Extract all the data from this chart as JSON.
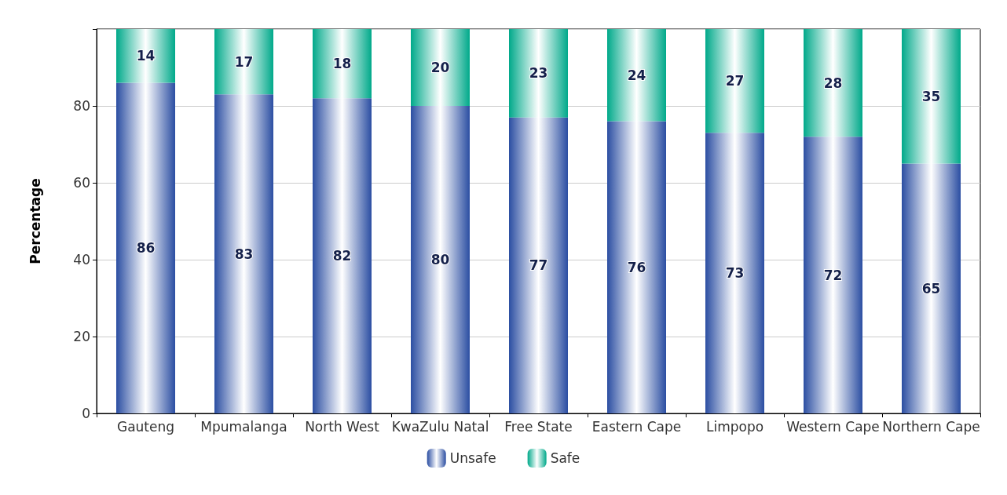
{
  "chart_data": {
    "type": "bar",
    "stacked": true,
    "ylabel": "Percentage",
    "categories": [
      "Gauteng",
      "Mpumalanga",
      "North West",
      "KwaZulu Natal",
      "Free State",
      "Eastern Cape",
      "Limpopo",
      "Western Cape",
      "Northern Cape"
    ],
    "series": [
      {
        "name": "Unsafe",
        "color": "#2b4ea2",
        "values": [
          86,
          83,
          82,
          80,
          77,
          76,
          73,
          72,
          65
        ]
      },
      {
        "name": "Safe",
        "color": "#00a98a",
        "values": [
          14,
          17,
          18,
          20,
          23,
          24,
          27,
          28,
          35
        ]
      }
    ],
    "ylim": [
      0,
      100
    ],
    "yticks": [
      0,
      20,
      40,
      60,
      80,
      {
        "value": 100,
        "label": null
      }
    ],
    "grid": "y",
    "legend": "bottom",
    "data_labels": true
  }
}
